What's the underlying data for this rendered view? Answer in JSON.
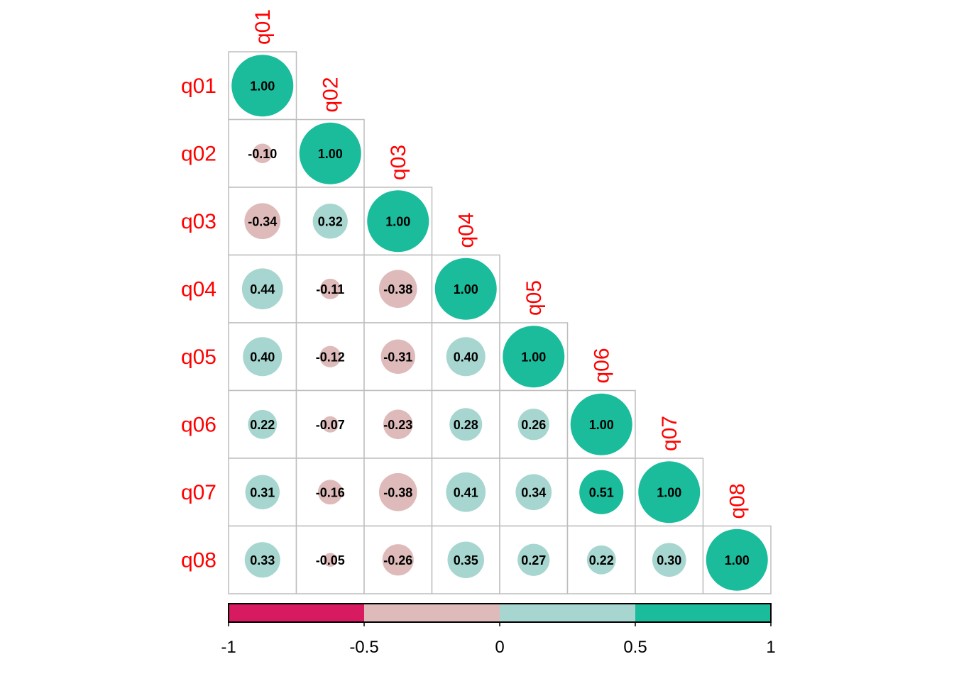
{
  "chart_data": {
    "type": "heatmap",
    "subtype": "corrplot-circle-lower",
    "variables": [
      "q01",
      "q02",
      "q03",
      "q04",
      "q05",
      "q06",
      "q07",
      "q08"
    ],
    "matrix_lower": [
      [
        1.0
      ],
      [
        -0.1,
        1.0
      ],
      [
        -0.34,
        0.32,
        1.0
      ],
      [
        0.44,
        -0.11,
        -0.38,
        1.0
      ],
      [
        0.4,
        -0.12,
        -0.31,
        0.4,
        1.0
      ],
      [
        0.22,
        -0.07,
        -0.23,
        0.28,
        0.26,
        1.0
      ],
      [
        0.31,
        -0.16,
        -0.38,
        0.41,
        0.34,
        0.51,
        1.0
      ],
      [
        0.33,
        -0.05,
        -0.26,
        0.35,
        0.27,
        0.22,
        0.3,
        1.0
      ]
    ],
    "colorbar": {
      "breaks": [
        -1,
        -0.5,
        0,
        0.5,
        1
      ],
      "tick_labels": [
        "-1",
        "-0.5",
        "0",
        "0.5",
        "1"
      ],
      "colors": [
        "#D81B60",
        "#DEBBBA",
        "#A6D6CF",
        "#1ABC9C"
      ],
      "range": [
        -1,
        1
      ]
    },
    "label_color": "#FF0000",
    "grid_color": "#BEBEBE"
  }
}
